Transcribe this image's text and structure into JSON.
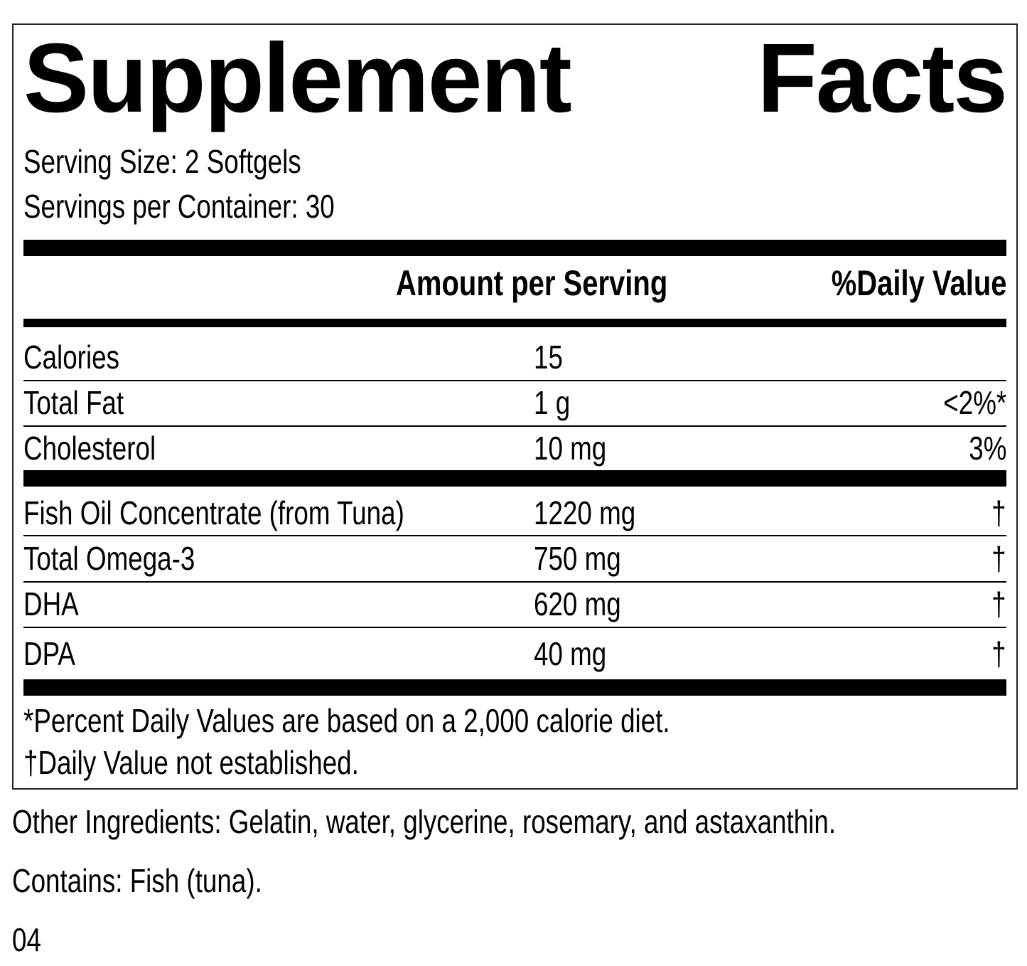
{
  "title": "Supplement Facts",
  "serving_size": "Serving Size: 2 Softgels",
  "servings_per_container": "Servings per Container: 30",
  "header": {
    "amount": "Amount per Serving",
    "daily_value": "%Daily Value"
  },
  "rows": [
    {
      "name": "Calories",
      "amount": "15"
    },
    {
      "name": "Total Fat",
      "amount": "1 g",
      "daily_value": "<2%*"
    },
    {
      "name": "Cholesterol",
      "amount": "10 mg",
      "daily_value": "3%"
    },
    {
      "name": "Fish Oil Concentrate (from Tuna)",
      "amount": "1220 mg",
      "daily_value": "†"
    },
    {
      "name": "Total Omega-3",
      "amount": "750 mg",
      "daily_value": "†"
    },
    {
      "name": "DHA",
      "amount": "620 mg",
      "daily_value": "†"
    },
    {
      "name": "DPA",
      "amount": "40 mg",
      "daily_value": "†"
    }
  ],
  "footnotes": [
    "*Percent Daily Values are based on a 2,000 calorie diet.",
    "†Daily Value not established."
  ],
  "other_ingredients": "Other Ingredients: Gelatin, water, glycerine, rosemary, and astaxanthin.",
  "contains": "Contains: Fish (tuna).",
  "code": "04"
}
